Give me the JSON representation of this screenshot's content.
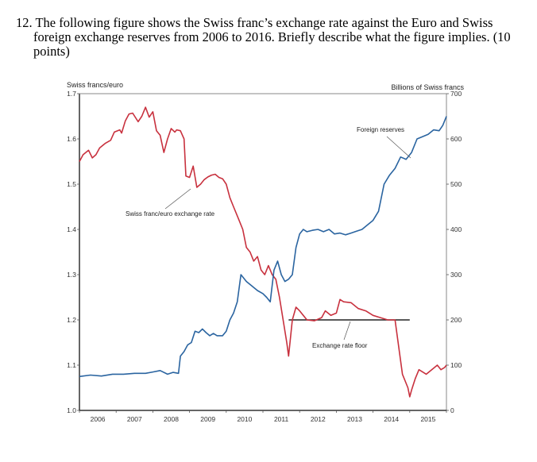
{
  "question": {
    "line1": "12. The following figure shows the Swiss franc’s exchange rate against the Euro and Swiss",
    "line2": "foreign exchange reserves from 2006 to 2016. Briefly describe what the figure implies. (10",
    "line3": "points)"
  },
  "chart_data": {
    "type": "line",
    "title": "",
    "left_axis": {
      "label": "Swiss francs/euro",
      "range": [
        1.0,
        1.7
      ],
      "ticks": [
        "1.0",
        "1.1",
        "1.2",
        "1.3",
        "1.4",
        "1.5",
        "1.6",
        "1.7"
      ]
    },
    "right_axis": {
      "label": "Billions of Swiss francs",
      "range": [
        0,
        700
      ],
      "ticks": [
        "0",
        "100",
        "200",
        "300",
        "400",
        "500",
        "600",
        "700"
      ]
    },
    "x_axis": {
      "range": [
        2006,
        2016
      ],
      "ticks": [
        "2006",
        "2007",
        "2008",
        "2009",
        "2010",
        "2011",
        "2012",
        "2013",
        "2014",
        "2015"
      ]
    },
    "grid": false,
    "colors": {
      "exchange_rate": "#c8313e",
      "reserves": "#2a64a0",
      "floor": "#222222"
    },
    "annotations": {
      "exchange_rate": "Swiss franc/euro exchange rate",
      "reserves": "Foreign reserves",
      "floor": "Exchange rate floor"
    },
    "exchange_rate_floor": {
      "value": 1.2,
      "x_start": 2011.7,
      "x_end": 2015.0
    },
    "series": [
      {
        "name": "Swiss franc/euro exchange rate",
        "axis": "left",
        "x": [
          2006.0,
          2006.1,
          2006.25,
          2006.35,
          2006.45,
          2006.55,
          2006.7,
          2006.85,
          2006.95,
          2007.1,
          2007.15,
          2007.25,
          2007.35,
          2007.45,
          2007.6,
          2007.7,
          2007.8,
          2007.9,
          2008.0,
          2008.1,
          2008.2,
          2008.3,
          2008.4,
          2008.5,
          2008.6,
          2008.65,
          2008.75,
          2008.85,
          2008.9,
          2009.0,
          2009.1,
          2009.2,
          2009.3,
          2009.4,
          2009.5,
          2009.6,
          2009.7,
          2009.8,
          2009.9,
          2010.0,
          2010.1,
          2010.2,
          2010.3,
          2010.35,
          2010.45,
          2010.55,
          2010.65,
          2010.75,
          2010.85,
          2010.95,
          2011.05,
          2011.15,
          2011.25,
          2011.35,
          2011.45,
          2011.55,
          2011.65,
          2011.7,
          2011.8,
          2011.9,
          2012.0,
          2012.2,
          2012.4,
          2012.6,
          2012.7,
          2012.85,
          2013.0,
          2013.1,
          2013.2,
          2013.4,
          2013.6,
          2013.8,
          2014.0,
          2014.2,
          2014.4,
          2014.6,
          2014.8,
          2014.95,
          2015.0,
          2015.05,
          2015.15,
          2015.25,
          2015.35,
          2015.45,
          2015.6,
          2015.75,
          2015.85,
          2015.95,
          2016.0
        ],
        "values": [
          1.55,
          1.565,
          1.575,
          1.558,
          1.565,
          1.58,
          1.59,
          1.597,
          1.615,
          1.62,
          1.613,
          1.64,
          1.655,
          1.657,
          1.638,
          1.65,
          1.67,
          1.648,
          1.66,
          1.618,
          1.608,
          1.57,
          1.6,
          1.623,
          1.615,
          1.62,
          1.618,
          1.6,
          1.518,
          1.515,
          1.54,
          1.493,
          1.5,
          1.51,
          1.516,
          1.52,
          1.522,
          1.515,
          1.512,
          1.5,
          1.47,
          1.45,
          1.43,
          1.42,
          1.4,
          1.36,
          1.35,
          1.33,
          1.34,
          1.31,
          1.3,
          1.32,
          1.3,
          1.29,
          1.25,
          1.2,
          1.15,
          1.12,
          1.2,
          1.228,
          1.22,
          1.2,
          1.198,
          1.205,
          1.22,
          1.21,
          1.215,
          1.245,
          1.24,
          1.238,
          1.225,
          1.22,
          1.21,
          1.205,
          1.2,
          1.2,
          1.08,
          1.05,
          1.03,
          1.045,
          1.07,
          1.09,
          1.085,
          1.08,
          1.09,
          1.1,
          1.09,
          1.095,
          1.1
        ]
      },
      {
        "name": "Foreign reserves",
        "axis": "right",
        "x": [
          2006.0,
          2006.3,
          2006.6,
          2006.9,
          2007.2,
          2007.5,
          2007.8,
          2008.0,
          2008.2,
          2008.4,
          2008.55,
          2008.7,
          2008.75,
          2008.85,
          2008.95,
          2009.05,
          2009.15,
          2009.25,
          2009.35,
          2009.45,
          2009.55,
          2009.65,
          2009.75,
          2009.9,
          2010.0,
          2010.1,
          2010.2,
          2010.3,
          2010.4,
          2010.55,
          2010.7,
          2010.85,
          2011.0,
          2011.1,
          2011.2,
          2011.3,
          2011.4,
          2011.5,
          2011.6,
          2011.7,
          2011.8,
          2011.9,
          2012.0,
          2012.1,
          2012.2,
          2012.35,
          2012.5,
          2012.65,
          2012.8,
          2012.95,
          2013.1,
          2013.25,
          2013.4,
          2013.55,
          2013.7,
          2013.85,
          2014.0,
          2014.15,
          2014.3,
          2014.45,
          2014.6,
          2014.75,
          2014.9,
          2015.05,
          2015.2,
          2015.35,
          2015.5,
          2015.65,
          2015.8,
          2015.9,
          2016.0
        ],
        "values": [
          75,
          78,
          76,
          80,
          80,
          82,
          82,
          85,
          88,
          80,
          84,
          82,
          120,
          130,
          145,
          150,
          175,
          172,
          180,
          172,
          165,
          170,
          165,
          165,
          175,
          200,
          215,
          240,
          300,
          285,
          275,
          265,
          258,
          250,
          240,
          310,
          330,
          300,
          285,
          290,
          300,
          360,
          390,
          400,
          395,
          398,
          400,
          395,
          400,
          390,
          392,
          388,
          392,
          396,
          400,
          410,
          420,
          440,
          500,
          520,
          535,
          560,
          555,
          570,
          600,
          605,
          610,
          620,
          618,
          630,
          650
        ]
      }
    ]
  }
}
